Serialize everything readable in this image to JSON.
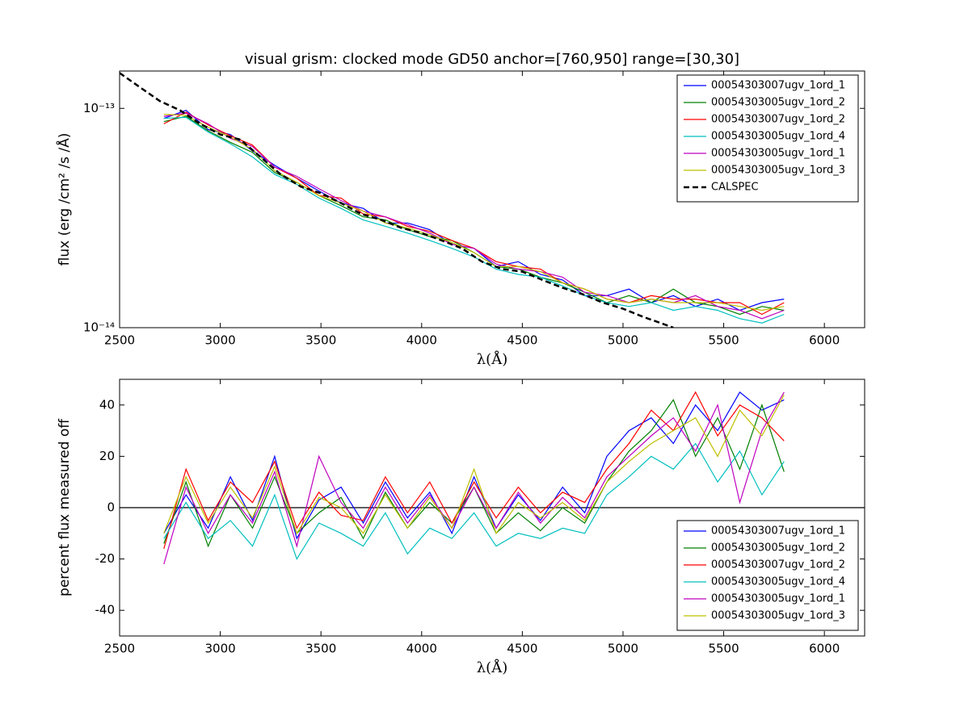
{
  "chart_data": [
    {
      "type": "line",
      "title": "visual grism: clocked mode GD50 anchor=[760,950] range=[30,30]",
      "xlabel": "λ(Å)",
      "ylabel": "flux (erg /cm²  /s /Å)",
      "yscale": "log",
      "xlim": [
        2500,
        6200
      ],
      "xticks": [
        2500,
        3000,
        3500,
        4000,
        4500,
        5000,
        5500,
        6000
      ],
      "ylim": [
        1e-14,
        1.48e-13
      ],
      "yticks": [
        {
          "value": 1e-14,
          "label": "10⁻¹⁴"
        },
        {
          "value": 1e-13,
          "label": "10⁻¹³"
        }
      ],
      "legend": "upper right",
      "x": [
        2720,
        2830,
        2940,
        3050,
        3160,
        3270,
        3380,
        3490,
        3600,
        3710,
        3820,
        3930,
        4040,
        4150,
        4260,
        4370,
        4480,
        4590,
        4700,
        4810,
        4920,
        5030,
        5140,
        5250,
        5360,
        5470,
        5580,
        5690,
        5800
      ],
      "series": [
        {
          "name": "00054303007ugv_1ord_1",
          "color": "#0000ff",
          "values": [
            9e-14,
            9.8e-14,
            8e-14,
            7.6e-14,
            6.4e-14,
            5.5e-14,
            4.8e-14,
            4.2e-14,
            3.7e-14,
            3.5e-14,
            3e-14,
            3e-14,
            2.8e-14,
            2.4e-14,
            2.3e-14,
            1.9e-14,
            2e-14,
            1.75e-14,
            1.65e-14,
            1.4e-14,
            1.4e-14,
            1.5e-14,
            1.3e-14,
            1.4e-14,
            1.25e-14,
            1.35e-14,
            1.2e-14,
            1.3e-14,
            1.35e-14
          ]
        },
        {
          "name": "00054303005ugv_1ord_2",
          "color": "#008000",
          "values": [
            8.7e-14,
            9.2e-14,
            7.9e-14,
            7e-14,
            6.3e-14,
            5.1e-14,
            4.6e-14,
            4e-14,
            3.6e-14,
            3.2e-14,
            3.1e-14,
            2.8e-14,
            2.6e-14,
            2.5e-14,
            2.2e-14,
            1.9e-14,
            1.85e-14,
            1.7e-14,
            1.6e-14,
            1.45e-14,
            1.3e-14,
            1.4e-14,
            1.3e-14,
            1.5e-14,
            1.3e-14,
            1.25e-14,
            1.15e-14,
            1.25e-14,
            1.2e-14
          ]
        },
        {
          "name": "00054303007ugv_1ord_2",
          "color": "#ff0000",
          "values": [
            8.5e-14,
            9.6e-14,
            8.4e-14,
            7.5e-14,
            6.8e-14,
            5.4e-14,
            4.8e-14,
            4e-14,
            3.9e-14,
            3.3e-14,
            3.2e-14,
            2.9e-14,
            2.75e-14,
            2.5e-14,
            2.3e-14,
            2e-14,
            1.9e-14,
            1.85e-14,
            1.6e-14,
            1.5e-14,
            1.35e-14,
            1.3e-14,
            1.4e-14,
            1.35e-14,
            1.35e-14,
            1.3e-14,
            1.3e-14,
            1.15e-14,
            1.3e-14
          ]
        },
        {
          "name": "00054303005ugv_1ord_4",
          "color": "#00bfbf",
          "values": [
            9e-14,
            9.1e-14,
            7.8e-14,
            6.9e-14,
            6e-14,
            5e-14,
            4.5e-14,
            3.9e-14,
            3.5e-14,
            3.1e-14,
            2.9e-14,
            2.7e-14,
            2.5e-14,
            2.3e-14,
            2.1e-14,
            1.85e-14,
            1.75e-14,
            1.7e-14,
            1.55e-14,
            1.4e-14,
            1.3e-14,
            1.25e-14,
            1.3e-14,
            1.2e-14,
            1.25e-14,
            1.2e-14,
            1.1e-14,
            1.05e-14,
            1.15e-14
          ]
        },
        {
          "name": "00054303005ugv_1ord_1",
          "color": "#bf00bf",
          "values": [
            9.2e-14,
            9.5e-14,
            8.5e-14,
            7.3e-14,
            6.7e-14,
            5.4e-14,
            4.9e-14,
            4.3e-14,
            3.8e-14,
            3.4e-14,
            3.2e-14,
            2.95e-14,
            2.7e-14,
            2.4e-14,
            2.3e-14,
            1.95e-14,
            1.85e-14,
            1.8e-14,
            1.7e-14,
            1.45e-14,
            1.4e-14,
            1.3e-14,
            1.35e-14,
            1.3e-14,
            1.4e-14,
            1.25e-14,
            1.2e-14,
            1.1e-14,
            1.2e-14
          ]
        },
        {
          "name": "00054303005ugv_1ord_3",
          "color": "#bfbf00",
          "values": [
            9.4e-14,
            9.3e-14,
            8.2e-14,
            7.4e-14,
            6.5e-14,
            5.2e-14,
            4.6e-14,
            4e-14,
            3.7e-14,
            3.4e-14,
            3e-14,
            2.85e-14,
            2.65e-14,
            2.45e-14,
            2.2e-14,
            1.9e-14,
            1.9e-14,
            1.8e-14,
            1.6e-14,
            1.5e-14,
            1.35e-14,
            1.3e-14,
            1.35e-14,
            1.3e-14,
            1.3e-14,
            1.3e-14,
            1.25e-14,
            1.2e-14,
            1.25e-14
          ]
        },
        {
          "name": "CALSPEC",
          "color": "#000000",
          "dashed": true,
          "x": [
            2500,
            2600,
            2700,
            2800,
            2900,
            3000,
            3100,
            3200,
            3300,
            3400,
            3500,
            3600,
            3700,
            3800,
            3900,
            4000,
            4100,
            4200,
            4300,
            4400,
            4500,
            4600,
            4700,
            4800,
            4900,
            5000,
            5100,
            5200,
            5250
          ],
          "values": [
            1.45e-13,
            1.25e-13,
            1.08e-13,
            9.8e-14,
            8.5e-14,
            7.6e-14,
            7.2e-14,
            6e-14,
            5e-14,
            4.4e-14,
            4.1e-14,
            3.7e-14,
            3.3e-14,
            3.1e-14,
            2.85e-14,
            2.7e-14,
            2.5e-14,
            2.3e-14,
            2e-14,
            1.85e-14,
            1.8e-14,
            1.65e-14,
            1.52e-14,
            1.42e-14,
            1.3e-14,
            1.22e-14,
            1.12e-14,
            1.04e-14,
            1e-14
          ]
        }
      ]
    },
    {
      "type": "line",
      "xlabel": "λ(Å)",
      "ylabel": "percent flux measured off",
      "xlim": [
        2500,
        6200
      ],
      "xticks": [
        2500,
        3000,
        3500,
        4000,
        4500,
        5000,
        5500,
        6000
      ],
      "ylim": [
        -50,
        50
      ],
      "yticks": [
        -40,
        -20,
        0,
        20,
        40
      ],
      "reference_line": 0,
      "legend": "lower right",
      "x": [
        2720,
        2830,
        2940,
        3050,
        3160,
        3270,
        3380,
        3490,
        3600,
        3710,
        3820,
        3930,
        4040,
        4150,
        4260,
        4370,
        4480,
        4590,
        4700,
        4810,
        4920,
        5030,
        5140,
        5250,
        5360,
        5470,
        5580,
        5690,
        5800
      ],
      "series": [
        {
          "name": "00054303007ugv_1ord_1",
          "color": "#0000ff",
          "values": [
            -10,
            5,
            -8,
            12,
            -5,
            20,
            -12,
            3,
            8,
            -6,
            10,
            -4,
            6,
            -10,
            12,
            -8,
            5,
            -5,
            8,
            -2,
            20,
            30,
            35,
            25,
            40,
            30,
            45,
            38,
            42
          ]
        },
        {
          "name": "00054303005ugv_1ord_2",
          "color": "#008000",
          "values": [
            -14,
            10,
            -15,
            5,
            -8,
            12,
            -10,
            -2,
            4,
            -12,
            6,
            -8,
            2,
            -6,
            8,
            -10,
            -2,
            -9,
            0,
            -6,
            10,
            22,
            30,
            42,
            20,
            35,
            15,
            40,
            14
          ]
        },
        {
          "name": "00054303007ugv_1ord_2",
          "color": "#ff0000",
          "values": [
            -16,
            15,
            -5,
            10,
            2,
            18,
            -8,
            6,
            -3,
            -5,
            12,
            -2,
            10,
            -6,
            10,
            -4,
            8,
            -2,
            6,
            2,
            15,
            25,
            38,
            30,
            45,
            28,
            40,
            35,
            26
          ]
        },
        {
          "name": "00054303005ugv_1ord_4",
          "color": "#00bfbf",
          "values": [
            -12,
            2,
            -12,
            -5,
            -15,
            5,
            -20,
            -6,
            -10,
            -15,
            -2,
            -18,
            -8,
            -12,
            -2,
            -15,
            -10,
            -12,
            -8,
            -10,
            5,
            12,
            20,
            15,
            25,
            10,
            22,
            5,
            18
          ]
        },
        {
          "name": "00054303005ugv_1ord_1",
          "color": "#bf00bf",
          "values": [
            -22,
            8,
            -10,
            5,
            -6,
            14,
            -15,
            20,
            2,
            -8,
            8,
            -6,
            5,
            -8,
            8,
            -8,
            6,
            -6,
            4,
            -4,
            12,
            20,
            28,
            35,
            22,
            40,
            2,
            30,
            45
          ]
        },
        {
          "name": "00054303005ugv_1ord_3",
          "color": "#bfbf00",
          "values": [
            -10,
            12,
            -6,
            8,
            -4,
            16,
            -10,
            4,
            0,
            -10,
            5,
            -8,
            4,
            -8,
            15,
            -10,
            2,
            -4,
            2,
            -5,
            10,
            18,
            25,
            30,
            35,
            20,
            38,
            28,
            44
          ]
        }
      ]
    }
  ]
}
